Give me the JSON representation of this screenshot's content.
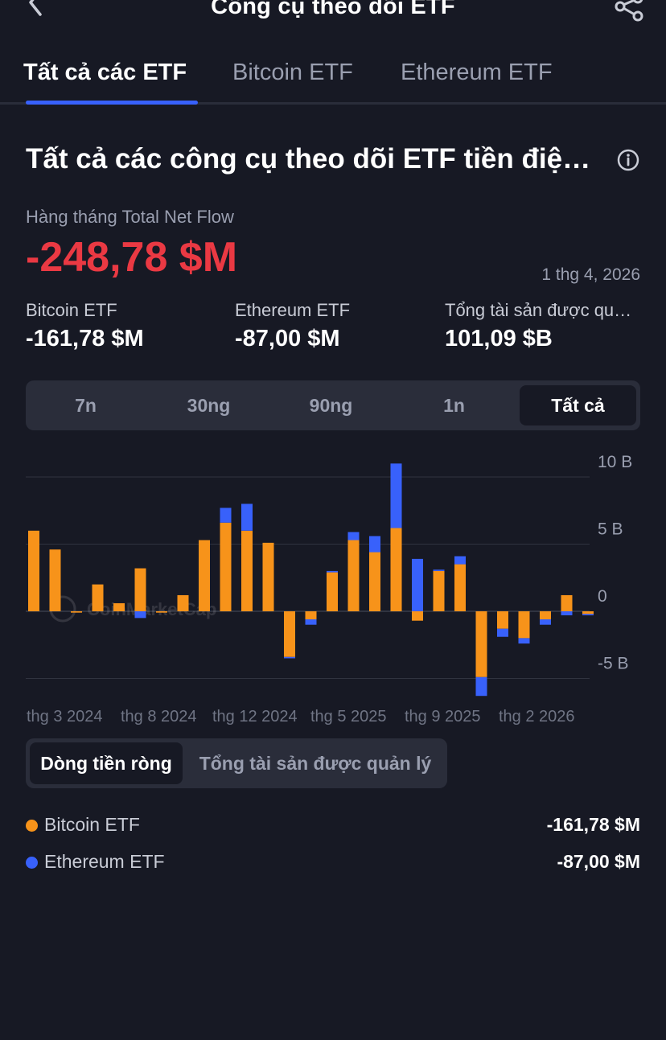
{
  "header": {
    "title": "Công cụ theo dõi ETF"
  },
  "tabs": [
    {
      "label": "Tất cả các ETF",
      "active": true
    },
    {
      "label": "Bitcoin ETF",
      "active": false
    },
    {
      "label": "Ethereum ETF",
      "active": false
    }
  ],
  "section": {
    "title": "Tất cả các công cụ theo dõi ETF tiền điện tử"
  },
  "summary": {
    "flow_label": "Hàng tháng Total Net Flow",
    "flow_value": "-248,78 $M",
    "date": "1 thg 4, 2026",
    "stats": [
      {
        "label": "Bitcoin ETF",
        "value": "-161,78 $M"
      },
      {
        "label": "Ethereum ETF",
        "value": "-87,00 $M"
      },
      {
        "label": "Tổng tài sản được quản lý",
        "value": "101,09 $B"
      }
    ]
  },
  "ranges": [
    {
      "label": "7n",
      "active": false
    },
    {
      "label": "30ng",
      "active": false
    },
    {
      "label": "90ng",
      "active": false
    },
    {
      "label": "1n",
      "active": false
    },
    {
      "label": "Tất cả",
      "active": true
    }
  ],
  "chart_data": {
    "type": "bar",
    "stacked": true,
    "unit": "B",
    "y_ticks": [
      {
        "value": 10,
        "label": "10 B"
      },
      {
        "value": 5,
        "label": "5 B"
      },
      {
        "value": 0,
        "label": "0"
      },
      {
        "value": -5,
        "label": "-5 B"
      }
    ],
    "ylim": [
      -5,
      11
    ],
    "x_tick_labels": [
      "thg 3 2024",
      "thg 8 2024",
      "thg 12 2024",
      "thg 5 2025",
      "thg 9 2025",
      "thg 2 2026"
    ],
    "watermark": "CoinMarketCap",
    "series": [
      {
        "name": "Bitcoin ETF",
        "color": "#f7931a",
        "values": [
          6.0,
          4.6,
          -0.1,
          2.0,
          0.6,
          3.2,
          -0.1,
          1.2,
          5.3,
          6.6,
          6.0,
          5.1,
          -3.4,
          -0.6,
          2.9,
          5.3,
          4.4,
          6.2,
          -0.7,
          3.0,
          3.5,
          -4.9,
          -1.3,
          -2.0,
          -0.6,
          1.2,
          -0.2
        ]
      },
      {
        "name": "Ethereum ETF",
        "color": "#3861fb",
        "values": [
          0,
          0,
          0,
          0,
          0,
          -0.5,
          0,
          0,
          0,
          1.1,
          2.0,
          0,
          -0.1,
          -0.4,
          0.1,
          0.6,
          1.2,
          4.8,
          3.9,
          0.1,
          0.6,
          -1.4,
          -0.6,
          -0.4,
          -0.4,
          -0.3,
          -0.1
        ]
      }
    ]
  },
  "toggle": [
    {
      "label": "Dòng tiền ròng",
      "active": true
    },
    {
      "label": "Tổng tài sản được quản lý",
      "active": false
    }
  ],
  "legend": [
    {
      "name": "Bitcoin ETF",
      "value": "-161,78 $M",
      "color": "#f7931a"
    },
    {
      "name": "Ethereum ETF",
      "value": "-87,00 $M",
      "color": "#3861fb"
    }
  ]
}
